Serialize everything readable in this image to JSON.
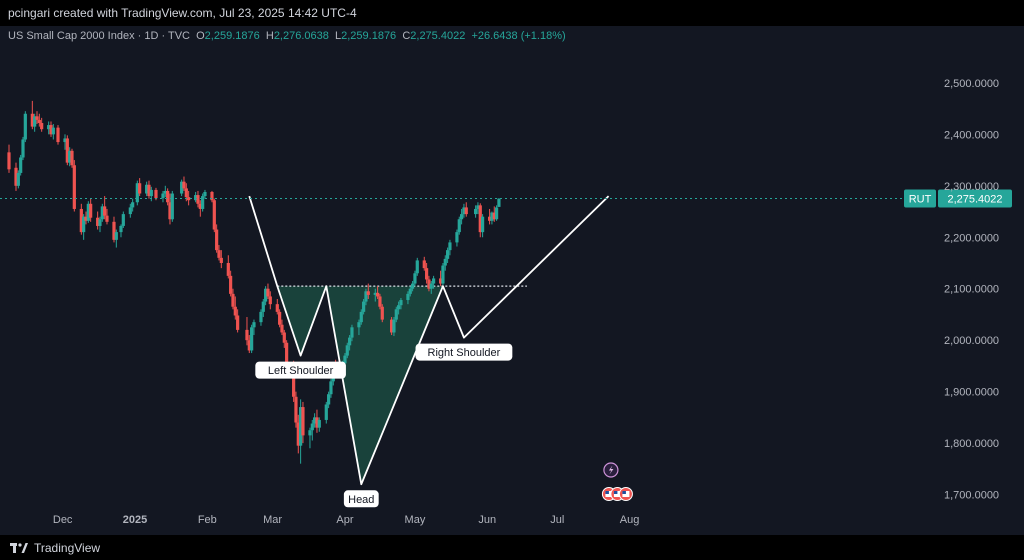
{
  "header": {
    "credit": "pcingari created with TradingView.com, Jul 23, 2025 14:42 UTC-4"
  },
  "legend": {
    "symbol": "US Small Cap 2000 Index · 1D · TVC",
    "o_label": "O",
    "o_value": "2,259.1876",
    "h_label": "H",
    "h_value": "2,276.0638",
    "l_label": "L",
    "l_value": "2,259.1876",
    "c_label": "C",
    "c_value": "2,275.4022",
    "change": "+26.6438 (+1.18%)"
  },
  "footer": {
    "brand": "TradingView",
    "brand_icon": "tradingview-logo-icon"
  },
  "colors": {
    "up": "#26a69a",
    "down": "#ef5350",
    "pattern": "#ffffff",
    "fill": "#1b4a3f",
    "price_line": "#26a69a"
  },
  "chart_data": {
    "type": "candlestick",
    "y_ticks": [
      "2,500.0000",
      "2,400.0000",
      "2,300.0000",
      "2,200.0000",
      "2,100.0000",
      "2,000.0000",
      "1,900.0000",
      "1,800.0000",
      "1,700.0000"
    ],
    "y_tick_values": [
      2500,
      2400,
      2300,
      2200,
      2100,
      2000,
      1900,
      1800,
      1700
    ],
    "x_ticks": [
      "Dec",
      "2025",
      "Feb",
      "Mar",
      "Apr",
      "May",
      "Jun",
      "Jul",
      "Aug"
    ],
    "ylim": [
      1670,
      2560
    ],
    "grid": false,
    "current_price": {
      "symbol": "RUT",
      "value": "2,275.4022",
      "y": 2275.4
    },
    "neckline": 2105,
    "annotations": [
      {
        "text": "Left Shoulder",
        "y": 1970
      },
      {
        "text": "Head",
        "y": 1720
      },
      {
        "text": "Right Shoulder",
        "y": 2005
      }
    ],
    "pattern_line": [
      {
        "date": "2025-02-19",
        "y": 2280
      },
      {
        "date": "2025-03-03",
        "y": 2105
      },
      {
        "date": "2025-03-13",
        "y": 1970
      },
      {
        "date": "2025-03-24",
        "y": 2105
      },
      {
        "date": "2025-04-08",
        "y": 1720
      },
      {
        "date": "2025-05-13",
        "y": 2105
      },
      {
        "date": "2025-05-22",
        "y": 2005
      },
      {
        "date": "2025-07-23",
        "y": 2280
      }
    ],
    "candles": [
      {
        "o": 2365,
        "h": 2380,
        "l": 2325,
        "c": 2332
      },
      {
        "o": 2335,
        "h": 2345,
        "l": 2290,
        "c": 2300
      },
      {
        "o": 2300,
        "h": 2330,
        "l": 2295,
        "c": 2325
      },
      {
        "o": 2325,
        "h": 2360,
        "l": 2320,
        "c": 2355
      },
      {
        "o": 2355,
        "h": 2395,
        "l": 2350,
        "c": 2390
      },
      {
        "o": 2390,
        "h": 2445,
        "l": 2385,
        "c": 2440
      },
      {
        "o": 2440,
        "h": 2465,
        "l": 2410,
        "c": 2415
      },
      {
        "o": 2415,
        "h": 2440,
        "l": 2405,
        "c": 2435
      },
      {
        "o": 2435,
        "h": 2445,
        "l": 2420,
        "c": 2428
      },
      {
        "o": 2428,
        "h": 2440,
        "l": 2415,
        "c": 2422
      },
      {
        "o": 2422,
        "h": 2432,
        "l": 2405,
        "c": 2410
      },
      {
        "o": 2410,
        "h": 2425,
        "l": 2400,
        "c": 2418
      },
      {
        "o": 2418,
        "h": 2425,
        "l": 2395,
        "c": 2400
      },
      {
        "o": 2400,
        "h": 2420,
        "l": 2390,
        "c": 2413
      },
      {
        "o": 2413,
        "h": 2418,
        "l": 2380,
        "c": 2385
      },
      {
        "o": 2385,
        "h": 2400,
        "l": 2370,
        "c": 2392
      },
      {
        "o": 2392,
        "h": 2398,
        "l": 2340,
        "c": 2345
      },
      {
        "o": 2345,
        "h": 2375,
        "l": 2338,
        "c": 2368
      },
      {
        "o": 2368,
        "h": 2372,
        "l": 2335,
        "c": 2340
      },
      {
        "o": 2340,
        "h": 2350,
        "l": 2250,
        "c": 2255
      },
      {
        "o": 2255,
        "h": 2265,
        "l": 2205,
        "c": 2210
      },
      {
        "o": 2210,
        "h": 2245,
        "l": 2195,
        "c": 2240
      },
      {
        "o": 2240,
        "h": 2250,
        "l": 2225,
        "c": 2232
      },
      {
        "o": 2232,
        "h": 2270,
        "l": 2228,
        "c": 2265
      },
      {
        "o": 2265,
        "h": 2275,
        "l": 2230,
        "c": 2238
      },
      {
        "o": 2238,
        "h": 2250,
        "l": 2215,
        "c": 2222
      },
      {
        "o": 2222,
        "h": 2240,
        "l": 2210,
        "c": 2235
      },
      {
        "o": 2235,
        "h": 2265,
        "l": 2230,
        "c": 2260
      },
      {
        "o": 2260,
        "h": 2280,
        "l": 2235,
        "c": 2242
      },
      {
        "o": 2242,
        "h": 2255,
        "l": 2225,
        "c": 2230
      },
      {
        "o": 2230,
        "h": 2240,
        "l": 2190,
        "c": 2195
      },
      {
        "o": 2195,
        "h": 2215,
        "l": 2180,
        "c": 2210
      },
      {
        "o": 2210,
        "h": 2225,
        "l": 2200,
        "c": 2222
      },
      {
        "o": 2222,
        "h": 2250,
        "l": 2218,
        "c": 2245
      },
      {
        "o": 2245,
        "h": 2265,
        "l": 2238,
        "c": 2258
      },
      {
        "o": 2258,
        "h": 2275,
        "l": 2250,
        "c": 2268
      },
      {
        "o": 2268,
        "h": 2310,
        "l": 2262,
        "c": 2305
      },
      {
        "o": 2305,
        "h": 2315,
        "l": 2280,
        "c": 2285
      },
      {
        "o": 2285,
        "h": 2308,
        "l": 2280,
        "c": 2302
      },
      {
        "o": 2302,
        "h": 2310,
        "l": 2275,
        "c": 2280
      },
      {
        "o": 2280,
        "h": 2298,
        "l": 2270,
        "c": 2292
      },
      {
        "o": 2292,
        "h": 2296,
        "l": 2272,
        "c": 2276
      },
      {
        "o": 2276,
        "h": 2290,
        "l": 2268,
        "c": 2285
      },
      {
        "o": 2285,
        "h": 2300,
        "l": 2278,
        "c": 2290
      },
      {
        "o": 2290,
        "h": 2295,
        "l": 2262,
        "c": 2268
      },
      {
        "o": 2268,
        "h": 2285,
        "l": 2225,
        "c": 2235
      },
      {
        "o": 2235,
        "h": 2290,
        "l": 2230,
        "c": 2285
      },
      {
        "o": 2285,
        "h": 2312,
        "l": 2280,
        "c": 2308
      },
      {
        "o": 2308,
        "h": 2318,
        "l": 2290,
        "c": 2295
      },
      {
        "o": 2295,
        "h": 2305,
        "l": 2270,
        "c": 2278
      },
      {
        "o": 2278,
        "h": 2290,
        "l": 2262,
        "c": 2272
      },
      {
        "o": 2272,
        "h": 2288,
        "l": 2268,
        "c": 2282
      },
      {
        "o": 2282,
        "h": 2290,
        "l": 2258,
        "c": 2265
      },
      {
        "o": 2265,
        "h": 2272,
        "l": 2240,
        "c": 2255
      },
      {
        "o": 2255,
        "h": 2285,
        "l": 2250,
        "c": 2280
      },
      {
        "o": 2280,
        "h": 2292,
        "l": 2275,
        "c": 2288
      },
      {
        "o": 2288,
        "h": 2290,
        "l": 2268,
        "c": 2272
      },
      {
        "o": 2272,
        "h": 2275,
        "l": 2210,
        "c": 2215
      },
      {
        "o": 2215,
        "h": 2225,
        "l": 2170,
        "c": 2175
      },
      {
        "o": 2175,
        "h": 2185,
        "l": 2155,
        "c": 2160
      },
      {
        "o": 2160,
        "h": 2175,
        "l": 2140,
        "c": 2150
      },
      {
        "o": 2150,
        "h": 2165,
        "l": 2120,
        "c": 2125
      },
      {
        "o": 2125,
        "h": 2135,
        "l": 2085,
        "c": 2090
      },
      {
        "o": 2090,
        "h": 2100,
        "l": 2060,
        "c": 2065
      },
      {
        "o": 2065,
        "h": 2085,
        "l": 2040,
        "c": 2048
      },
      {
        "o": 2048,
        "h": 2060,
        "l": 2015,
        "c": 2020
      },
      {
        "o": 2020,
        "h": 2045,
        "l": 1990,
        "c": 2000
      },
      {
        "o": 2000,
        "h": 2010,
        "l": 1975,
        "c": 1980
      },
      {
        "o": 1980,
        "h": 2030,
        "l": 1975,
        "c": 2025
      },
      {
        "o": 2025,
        "h": 2040,
        "l": 2010,
        "c": 2035
      },
      {
        "o": 2035,
        "h": 2060,
        "l": 2028,
        "c": 2055
      },
      {
        "o": 2055,
        "h": 2080,
        "l": 2045,
        "c": 2075
      },
      {
        "o": 2075,
        "h": 2105,
        "l": 2068,
        "c": 2100
      },
      {
        "o": 2100,
        "h": 2110,
        "l": 2080,
        "c": 2085
      },
      {
        "o": 2085,
        "h": 2095,
        "l": 2060,
        "c": 2070
      },
      {
        "o": 2070,
        "h": 2080,
        "l": 2050,
        "c": 2055
      },
      {
        "o": 2055,
        "h": 2060,
        "l": 2025,
        "c": 2030
      },
      {
        "o": 2030,
        "h": 2040,
        "l": 2010,
        "c": 2015
      },
      {
        "o": 2015,
        "h": 2020,
        "l": 1985,
        "c": 1995
      },
      {
        "o": 1995,
        "h": 2000,
        "l": 1940,
        "c": 1950
      },
      {
        "o": 1950,
        "h": 1960,
        "l": 1880,
        "c": 1890
      },
      {
        "o": 1890,
        "h": 1900,
        "l": 1830,
        "c": 1840
      },
      {
        "o": 1840,
        "h": 1855,
        "l": 1780,
        "c": 1795
      },
      {
        "o": 1795,
        "h": 1885,
        "l": 1760,
        "c": 1870
      },
      {
        "o": 1870,
        "h": 1880,
        "l": 1800,
        "c": 1815
      },
      {
        "o": 1815,
        "h": 1830,
        "l": 1790,
        "c": 1825
      },
      {
        "o": 1825,
        "h": 1845,
        "l": 1805,
        "c": 1838
      },
      {
        "o": 1838,
        "h": 1858,
        "l": 1830,
        "c": 1850
      },
      {
        "o": 1850,
        "h": 1865,
        "l": 1820,
        "c": 1830
      },
      {
        "o": 1830,
        "h": 1850,
        "l": 1822,
        "c": 1845
      },
      {
        "o": 1845,
        "h": 1880,
        "l": 1838,
        "c": 1875
      },
      {
        "o": 1875,
        "h": 1900,
        "l": 1868,
        "c": 1895
      },
      {
        "o": 1895,
        "h": 1925,
        "l": 1888,
        "c": 1920
      },
      {
        "o": 1920,
        "h": 1950,
        "l": 1912,
        "c": 1945
      },
      {
        "o": 1945,
        "h": 1962,
        "l": 1930,
        "c": 1938
      },
      {
        "o": 1938,
        "h": 1960,
        "l": 1932,
        "c": 1955
      },
      {
        "o": 1955,
        "h": 1975,
        "l": 1950,
        "c": 1970
      },
      {
        "o": 1970,
        "h": 1995,
        "l": 1965,
        "c": 1990
      },
      {
        "o": 1990,
        "h": 2010,
        "l": 1980,
        "c": 2005
      },
      {
        "o": 2005,
        "h": 2030,
        "l": 1998,
        "c": 2025
      },
      {
        "o": 2025,
        "h": 2040,
        "l": 2010,
        "c": 2035
      },
      {
        "o": 2035,
        "h": 2060,
        "l": 2030,
        "c": 2055
      },
      {
        "o": 2055,
        "h": 2080,
        "l": 2050,
        "c": 2075
      },
      {
        "o": 2075,
        "h": 2100,
        "l": 2068,
        "c": 2095
      },
      {
        "o": 2095,
        "h": 2110,
        "l": 2080,
        "c": 2088
      },
      {
        "o": 2088,
        "h": 2100,
        "l": 2075,
        "c": 2092
      },
      {
        "o": 2092,
        "h": 2105,
        "l": 2080,
        "c": 2085
      },
      {
        "o": 2085,
        "h": 2090,
        "l": 2060,
        "c": 2065
      },
      {
        "o": 2065,
        "h": 2070,
        "l": 2035,
        "c": 2040
      },
      {
        "o": 2040,
        "h": 2045,
        "l": 2010,
        "c": 2015
      },
      {
        "o": 2015,
        "h": 2045,
        "l": 2008,
        "c": 2040
      },
      {
        "o": 2040,
        "h": 2065,
        "l": 2035,
        "c": 2060
      },
      {
        "o": 2060,
        "h": 2075,
        "l": 2050,
        "c": 2068
      },
      {
        "o": 2068,
        "h": 2082,
        "l": 2060,
        "c": 2078
      },
      {
        "o": 2078,
        "h": 2095,
        "l": 2070,
        "c": 2090
      },
      {
        "o": 2090,
        "h": 2105,
        "l": 2085,
        "c": 2100
      },
      {
        "o": 2100,
        "h": 2115,
        "l": 2095,
        "c": 2110
      },
      {
        "o": 2110,
        "h": 2135,
        "l": 2105,
        "c": 2130
      },
      {
        "o": 2130,
        "h": 2160,
        "l": 2125,
        "c": 2155
      },
      {
        "o": 2155,
        "h": 2162,
        "l": 2135,
        "c": 2140
      },
      {
        "o": 2140,
        "h": 2150,
        "l": 2110,
        "c": 2118
      },
      {
        "o": 2118,
        "h": 2125,
        "l": 2095,
        "c": 2100
      },
      {
        "o": 2100,
        "h": 2115,
        "l": 2090,
        "c": 2110
      },
      {
        "o": 2110,
        "h": 2125,
        "l": 2100,
        "c": 2120
      },
      {
        "o": 2120,
        "h": 2135,
        "l": 2105,
        "c": 2110
      },
      {
        "o": 2110,
        "h": 2150,
        "l": 2105,
        "c": 2145
      },
      {
        "o": 2145,
        "h": 2165,
        "l": 2135,
        "c": 2158
      },
      {
        "o": 2158,
        "h": 2180,
        "l": 2150,
        "c": 2175
      },
      {
        "o": 2175,
        "h": 2195,
        "l": 2165,
        "c": 2190
      },
      {
        "o": 2190,
        "h": 2215,
        "l": 2182,
        "c": 2210
      },
      {
        "o": 2210,
        "h": 2240,
        "l": 2205,
        "c": 2235
      },
      {
        "o": 2235,
        "h": 2255,
        "l": 2225,
        "c": 2245
      },
      {
        "o": 2245,
        "h": 2265,
        "l": 2238,
        "c": 2258
      },
      {
        "o": 2258,
        "h": 2268,
        "l": 2240,
        "c": 2245
      },
      {
        "o": 2245,
        "h": 2262,
        "l": 2238,
        "c": 2255
      },
      {
        "o": 2255,
        "h": 2268,
        "l": 2245,
        "c": 2262
      },
      {
        "o": 2262,
        "h": 2266,
        "l": 2200,
        "c": 2210
      },
      {
        "o": 2210,
        "h": 2245,
        "l": 2200,
        "c": 2240
      },
      {
        "o": 2240,
        "h": 2255,
        "l": 2225,
        "c": 2232
      },
      {
        "o": 2232,
        "h": 2250,
        "l": 2225,
        "c": 2248
      },
      {
        "o": 2248,
        "h": 2260,
        "l": 2230,
        "c": 2235
      },
      {
        "o": 2235,
        "h": 2262,
        "l": 2232,
        "c": 2258
      },
      {
        "o": 2259,
        "h": 2276,
        "l": 2259,
        "c": 2275
      }
    ]
  }
}
